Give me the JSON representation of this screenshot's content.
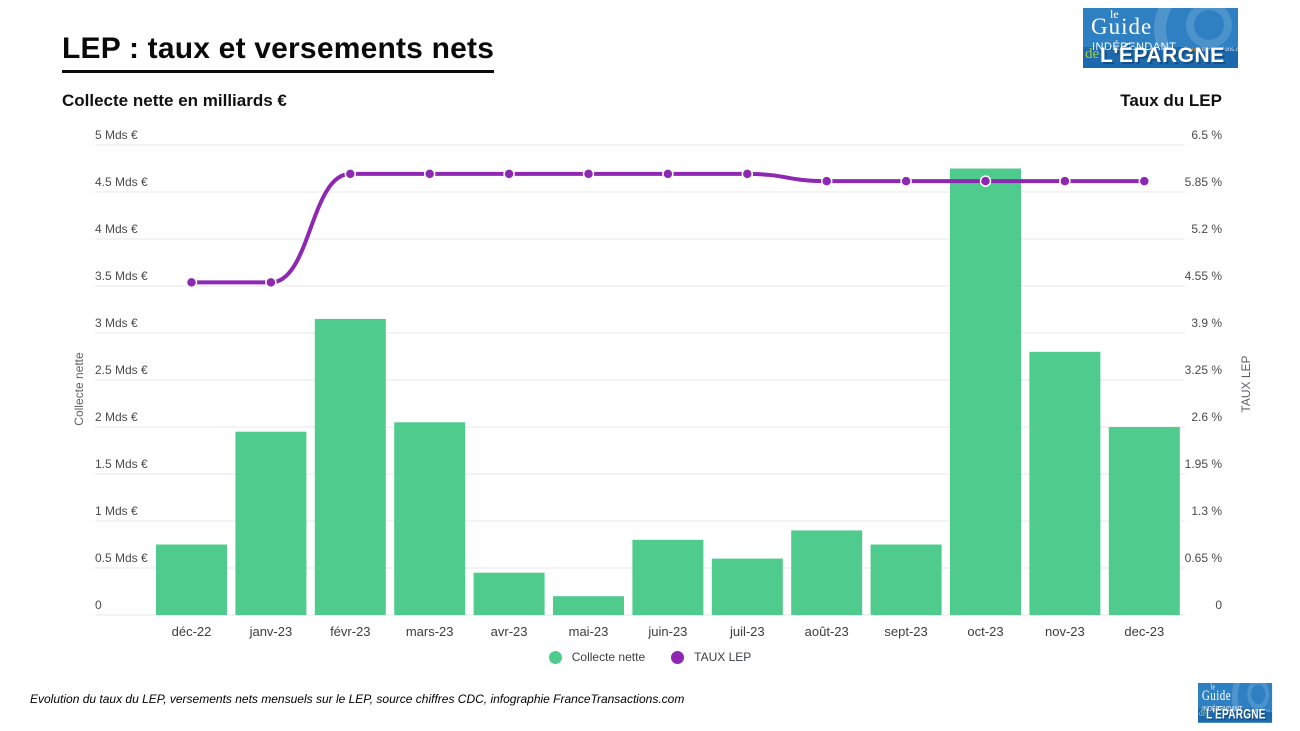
{
  "page": {
    "title": "LEP : taux et versements nets",
    "footer": "Evolution du taux du LEP, versements nets mensuels sur le LEP, source chiffres CDC, infographie FranceTransactions.com"
  },
  "logo": {
    "le": "le",
    "guide": "Guide",
    "independant": "INDÉPENDANT",
    "site_orange": "france",
    "site_blue": "transactions.com",
    "de": "de",
    "epargne": "L'ÉPARGNE"
  },
  "legend": {
    "items": [
      {
        "label": "Collecte nette",
        "color": "#4fcc8d"
      },
      {
        "label": "TAUX LEP",
        "color": "#8e28b2"
      }
    ]
  },
  "chart_data": {
    "type": "combo",
    "title_left": "Collecte nette en milliards €",
    "title_right": "Taux du LEP",
    "categories": [
      "déc-22",
      "janv-23",
      "févr-23",
      "mars-23",
      "avr-23",
      "mai-23",
      "juin-23",
      "juil-23",
      "août-23",
      "sept-23",
      "oct-23",
      "nov-23",
      "dec-23"
    ],
    "series": [
      {
        "name": "Collecte nette",
        "type": "bar",
        "color": "#4fcc8d",
        "values": [
          0.75,
          1.95,
          3.15,
          2.05,
          0.45,
          0.2,
          0.8,
          0.6,
          0.9,
          0.75,
          4.75,
          2.8,
          2.0
        ]
      },
      {
        "name": "TAUX LEP",
        "type": "line",
        "color": "#8e28b2",
        "values": [
          4.6,
          4.6,
          6.1,
          6.1,
          6.1,
          6.1,
          6.1,
          6.1,
          6.0,
          6.0,
          6.0,
          6.0,
          6.0
        ]
      }
    ],
    "left_axis": {
      "label": "Collecte nette",
      "range": [
        0,
        5
      ],
      "ticks": [
        "0",
        "0.5 Mds €",
        "1 Mds €",
        "1.5 Mds €",
        "2 Mds €",
        "2.5 Mds €",
        "3 Mds €",
        "3.5 Mds €",
        "4 Mds €",
        "4.5 Mds €",
        "5 Mds €"
      ]
    },
    "right_axis": {
      "label": "TAUX LEP",
      "range": [
        0,
        6.5
      ],
      "ticks": [
        "0",
        "0.65 %",
        "1.3 %",
        "1.95 %",
        "2.6 %",
        "3.25 %",
        "3.9 %",
        "4.55 %",
        "5.2 %",
        "5.85 %",
        "6.5 %"
      ]
    },
    "grid": true,
    "legend_position": "bottom",
    "colors": {
      "grid": "#e7e7e7",
      "tick_text": "#4a4a4a",
      "x_text": "#3d3d3d"
    }
  }
}
